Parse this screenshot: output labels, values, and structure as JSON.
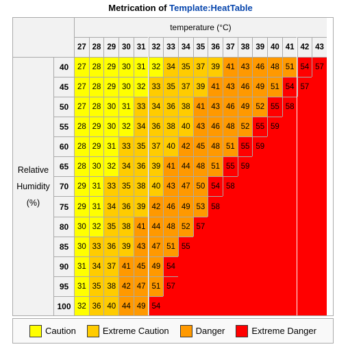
{
  "caption": {
    "prefix": "Metrication of ",
    "link": "Template:HeatTable"
  },
  "chart_data": {
    "type": "heatmap",
    "xlabel": "temperature (°C)",
    "ylabel_lines": [
      "Relative",
      "Humidity",
      "(%)"
    ],
    "x": [
      27,
      28,
      29,
      30,
      31,
      32,
      33,
      34,
      35,
      36,
      37,
      38,
      39,
      40,
      41,
      42,
      43
    ],
    "y": [
      40,
      45,
      50,
      55,
      60,
      65,
      70,
      75,
      80,
      85,
      90,
      95,
      100
    ],
    "values": [
      [
        27,
        28,
        29,
        30,
        31,
        32,
        34,
        35,
        37,
        39,
        41,
        43,
        46,
        48,
        51,
        54,
        57
      ],
      [
        27,
        28,
        29,
        30,
        32,
        33,
        35,
        37,
        39,
        41,
        43,
        46,
        49,
        51,
        54,
        57,
        null
      ],
      [
        27,
        28,
        30,
        31,
        33,
        34,
        36,
        38,
        41,
        43,
        46,
        49,
        52,
        55,
        58,
        null,
        null
      ],
      [
        28,
        29,
        30,
        32,
        34,
        36,
        38,
        40,
        43,
        46,
        48,
        52,
        55,
        59,
        null,
        null,
        null
      ],
      [
        28,
        29,
        31,
        33,
        35,
        37,
        40,
        42,
        45,
        48,
        51,
        55,
        59,
        null,
        null,
        null,
        null
      ],
      [
        28,
        30,
        32,
        34,
        36,
        39,
        41,
        44,
        48,
        51,
        55,
        59,
        null,
        null,
        null,
        null,
        null
      ],
      [
        29,
        31,
        33,
        35,
        38,
        40,
        43,
        47,
        50,
        54,
        58,
        null,
        null,
        null,
        null,
        null,
        null
      ],
      [
        29,
        31,
        34,
        36,
        39,
        42,
        46,
        49,
        53,
        58,
        null,
        null,
        null,
        null,
        null,
        null,
        null
      ],
      [
        30,
        32,
        35,
        38,
        41,
        44,
        48,
        52,
        57,
        null,
        null,
        null,
        null,
        null,
        null,
        null,
        null
      ],
      [
        30,
        33,
        36,
        39,
        43,
        47,
        51,
        55,
        null,
        null,
        null,
        null,
        null,
        null,
        null,
        null,
        null
      ],
      [
        31,
        34,
        37,
        41,
        45,
        49,
        54,
        null,
        null,
        null,
        null,
        null,
        null,
        null,
        null,
        null,
        null
      ],
      [
        31,
        35,
        38,
        42,
        47,
        51,
        57,
        null,
        null,
        null,
        null,
        null,
        null,
        null,
        null,
        null,
        null
      ],
      [
        32,
        36,
        40,
        44,
        49,
        54,
        null,
        null,
        null,
        null,
        null,
        null,
        null,
        null,
        null,
        null,
        null
      ]
    ],
    "categories": [
      {
        "name": "Caution",
        "color": "#ffff00",
        "min": 27,
        "max": 32
      },
      {
        "name": "Extreme Caution",
        "color": "#ffcc00",
        "min": 33,
        "max": 40
      },
      {
        "name": "Danger",
        "color": "#ff9900",
        "min": 41,
        "max": 53
      },
      {
        "name": "Extreme Danger",
        "color": "#ff0000",
        "min": 54,
        "max": 999
      }
    ],
    "empty_color": "#ff0000",
    "legend_placement": "bottom"
  }
}
